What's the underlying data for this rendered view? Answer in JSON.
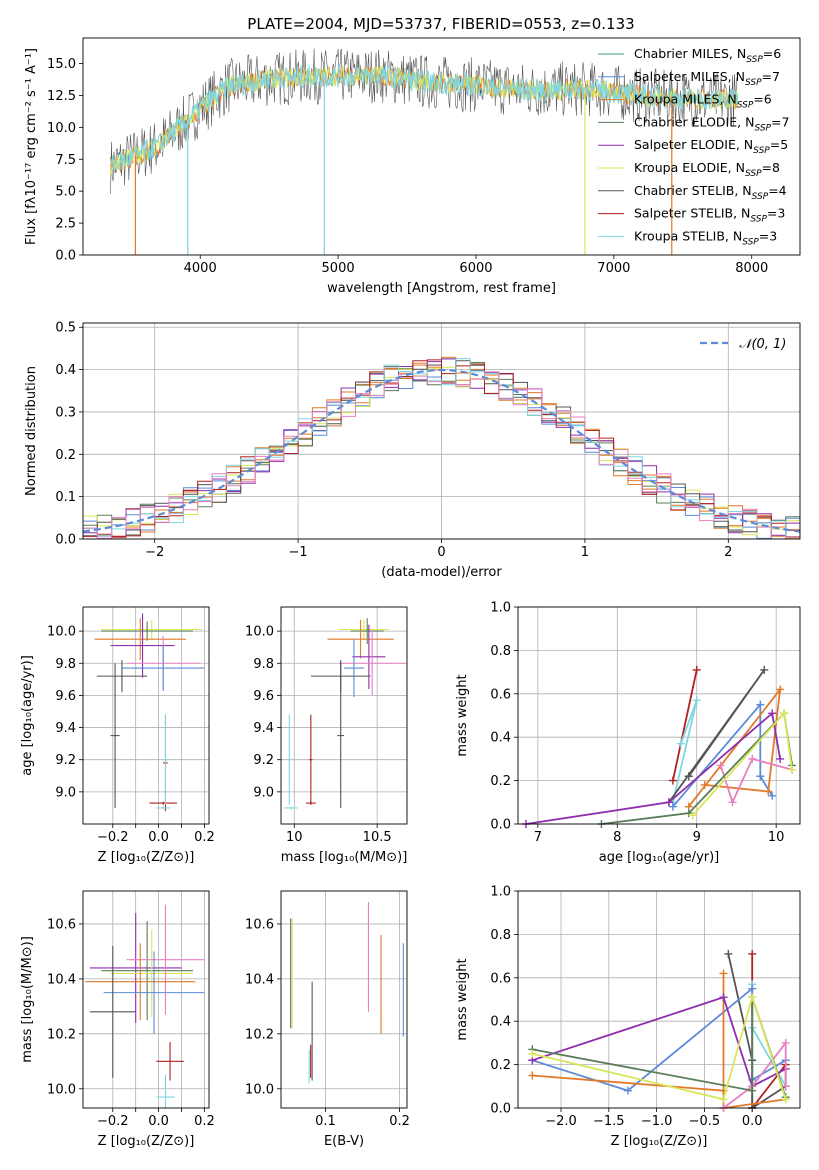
{
  "figure": {
    "title": "PLATE=2004, MJD=53737, FIBERID=0553, z=0.133"
  },
  "series_colors": [
    "#5b8bd9",
    "#e07a2a",
    "#e07a2a",
    "#5a7d5a",
    "#8f2fad",
    "#d9e65a",
    "#555555",
    "#b0201e",
    "#7fd6e0",
    "#e880c0"
  ],
  "chart_data": [
    {
      "id": "spectrum",
      "type": "line",
      "title": "PLATE=2004, MJD=53737, FIBERID=0553, z=0.133",
      "xlabel": "wavelength [Angstrom, rest frame]",
      "ylabel": "Flux [fλ10⁻¹⁷ erg cm⁻² s⁻¹ A⁻¹]",
      "xlim": [
        3150,
        8350
      ],
      "ylim": [
        0,
        17
      ],
      "xticks": [
        4000,
        5000,
        6000,
        7000,
        8000
      ],
      "yticks": [
        0.0,
        2.5,
        5.0,
        7.5,
        10.0,
        12.5,
        15.0
      ],
      "grid": false,
      "legend_position": "top-right",
      "legend": [
        {
          "label": "Chabrier MILES, N",
          "sub": "SSP",
          "suffix": "=6",
          "color": "#3c9b8b"
        },
        {
          "label": "Salpeter MILES, N",
          "sub": "SSP",
          "suffix": "=7",
          "color": "#5b8bd9"
        },
        {
          "label": "Kroupa MILES, N",
          "sub": "SSP",
          "suffix": "=6",
          "color": "#e07a2a"
        },
        {
          "label": "Chabrier ELODIE, N",
          "sub": "SSP",
          "suffix": "=7",
          "color": "#5a7d5a"
        },
        {
          "label": "Salpeter ELODIE, N",
          "sub": "SSP",
          "suffix": "=5",
          "color": "#8f2fad"
        },
        {
          "label": "Kroupa ELODIE, N",
          "sub": "SSP",
          "suffix": "=8",
          "color": "#d9e65a"
        },
        {
          "label": "Chabrier STELIB, N",
          "sub": "SSP",
          "suffix": "=4",
          "color": "#555555"
        },
        {
          "label": "Salpeter STELIB, N",
          "sub": "SSP",
          "suffix": "=3",
          "color": "#b0201e"
        },
        {
          "label": "Kroupa STELIB, N",
          "sub": "SSP",
          "suffix": "=3",
          "color": "#7fd6e0"
        }
      ],
      "series_shape": [
        {
          "x": 3350,
          "y": 7.0
        },
        {
          "x": 3500,
          "y": 7.6
        },
        {
          "x": 3700,
          "y": 8.6
        },
        {
          "x": 3900,
          "y": 10.5
        },
        {
          "x": 4000,
          "y": 11.5
        },
        {
          "x": 4200,
          "y": 13.2
        },
        {
          "x": 4500,
          "y": 13.8
        },
        {
          "x": 4800,
          "y": 14.0
        },
        {
          "x": 5000,
          "y": 14.0
        },
        {
          "x": 5300,
          "y": 14.1
        },
        {
          "x": 5600,
          "y": 13.6
        },
        {
          "x": 6000,
          "y": 13.3
        },
        {
          "x": 6400,
          "y": 12.9
        },
        {
          "x": 6800,
          "y": 13.0
        },
        {
          "x": 7200,
          "y": 12.5
        },
        {
          "x": 7600,
          "y": 12.2
        },
        {
          "x": 7900,
          "y": 12.2
        }
      ],
      "dips": [
        {
          "x": 3530,
          "y": 0
        },
        {
          "x": 3910,
          "y": 0
        },
        {
          "x": 4900,
          "y": 0
        },
        {
          "x": 6790,
          "y": 0
        },
        {
          "x": 7420,
          "y": 0
        }
      ]
    },
    {
      "id": "residuals",
      "type": "line",
      "xlabel": "(data-model)/error",
      "ylabel": "Normed distribution",
      "xlim": [
        -2.5,
        2.5
      ],
      "ylim": [
        0,
        0.51
      ],
      "xticks": [
        -2,
        -1,
        0,
        1,
        2
      ],
      "yticks": [
        0.0,
        0.1,
        0.2,
        0.3,
        0.4,
        0.5
      ],
      "grid": true,
      "legend_position": "top-right",
      "legend": [
        {
          "label": "𝒩(0,1)",
          "color": "#5b8bd9",
          "style": "dashed"
        }
      ],
      "gaussian": {
        "mean": 0,
        "sigma": 1
      }
    },
    {
      "id": "age_vs_Z",
      "type": "scatter",
      "xlabel": "Z [log₁₀(Z/Z⊙)]",
      "ylabel": "age  [log₁₀(age/yr)]",
      "xlim": [
        -0.33,
        0.22
      ],
      "ylim": [
        8.8,
        10.15
      ],
      "xticks": [
        -0.2,
        -0.1,
        0.0,
        0.1,
        0.2
      ],
      "xticklabels": [
        "−0.2",
        "",
        "0.0",
        "",
        "0.2"
      ],
      "yticks": [
        9.0,
        9.2,
        9.4,
        9.6,
        9.8,
        10.0
      ],
      "grid": true,
      "errorbars": [
        {
          "x": -0.03,
          "y": 10.01,
          "xerr": 0.22,
          "yerr": 0.06,
          "color": "#d9e65a"
        },
        {
          "x": -0.05,
          "y": 10.0,
          "xerr": 0.2,
          "yerr": 0.06,
          "color": "#5a7d5a"
        },
        {
          "x": -0.08,
          "y": 9.95,
          "xerr": 0.2,
          "yerr": 0.13,
          "color": "#e07a2a"
        },
        {
          "x": -0.07,
          "y": 9.91,
          "xerr": 0.14,
          "yerr": 0.2,
          "color": "#8f2fad"
        },
        {
          "x": 0.02,
          "y": 9.8,
          "xerr": 0.16,
          "yerr": 0.17,
          "color": "#e880c0"
        },
        {
          "x": 0.02,
          "y": 9.77,
          "xerr": 0.18,
          "yerr": 0.14,
          "color": "#5b8bd9"
        },
        {
          "x": -0.16,
          "y": 9.72,
          "xerr": 0.11,
          "yerr": 0.1,
          "color": "#555555"
        },
        {
          "x": -0.19,
          "y": 9.35,
          "xerr": 0.02,
          "yerr": 0.45,
          "color": "#555555"
        },
        {
          "x": 0.03,
          "y": 9.18,
          "xerr": 0.01,
          "yerr": 0.3,
          "color": "#b0201e"
        },
        {
          "x": 0.02,
          "y": 8.93,
          "xerr": 0.06,
          "yerr": 0.01,
          "color": "#b0201e"
        },
        {
          "x": 0.03,
          "y": 9.2,
          "xerr": 0.01,
          "yerr": 0.28,
          "color": "#7fd6e0"
        },
        {
          "x": 0.02,
          "y": 8.9,
          "xerr": 0.03,
          "yerr": 0.01,
          "color": "#7fd6e0"
        }
      ]
    },
    {
      "id": "age_vs_mass",
      "type": "scatter",
      "xlabel": "mass [log₁₀(M/M⊙)]",
      "ylabel": "",
      "xlim": [
        9.92,
        10.68
      ],
      "ylim": [
        8.8,
        10.15
      ],
      "xticks": [
        10.0,
        10.5
      ],
      "yticks": [
        9.0,
        9.2,
        9.4,
        9.6,
        9.8,
        10.0
      ],
      "grid": true,
      "errorbars": [
        {
          "x": 10.42,
          "y": 10.01,
          "xerr": 0.15,
          "yerr": 0.06,
          "color": "#d9e65a"
        },
        {
          "x": 10.44,
          "y": 10.0,
          "xerr": 0.1,
          "yerr": 0.08,
          "color": "#5a7d5a"
        },
        {
          "x": 10.4,
          "y": 9.95,
          "xerr": 0.2,
          "yerr": 0.12,
          "color": "#e07a2a"
        },
        {
          "x": 10.45,
          "y": 9.84,
          "xerr": 0.1,
          "yerr": 0.2,
          "color": "#8f2fad"
        },
        {
          "x": 10.47,
          "y": 9.8,
          "xerr": 0.2,
          "yerr": 0.2,
          "color": "#e880c0"
        },
        {
          "x": 10.36,
          "y": 9.77,
          "xerr": 0.06,
          "yerr": 0.18,
          "color": "#5b8bd9"
        },
        {
          "x": 10.28,
          "y": 9.72,
          "xerr": 0.18,
          "yerr": 0.1,
          "color": "#555555"
        },
        {
          "x": 10.28,
          "y": 9.35,
          "xerr": 0.02,
          "yerr": 0.45,
          "color": "#555555"
        },
        {
          "x": 10.1,
          "y": 9.2,
          "xerr": 0.01,
          "yerr": 0.28,
          "color": "#b0201e"
        },
        {
          "x": 10.1,
          "y": 8.93,
          "xerr": 0.03,
          "yerr": 0.01,
          "color": "#b0201e"
        },
        {
          "x": 9.97,
          "y": 9.2,
          "xerr": 0.01,
          "yerr": 0.28,
          "color": "#7fd6e0"
        },
        {
          "x": 9.98,
          "y": 8.9,
          "xerr": 0.04,
          "yerr": 0.01,
          "color": "#7fd6e0"
        }
      ]
    },
    {
      "id": "weight_vs_age",
      "type": "line",
      "xlabel": "age  [log₁₀(age/yr)]",
      "ylabel": "mass weight",
      "xlim": [
        6.75,
        10.3
      ],
      "ylim": [
        0,
        1.0
      ],
      "xticks": [
        7,
        8,
        9,
        10
      ],
      "yticks": [
        0.0,
        0.2,
        0.4,
        0.6,
        0.8,
        1.0
      ],
      "grid": true,
      "series": [
        {
          "name": "",
          "color": "#b0201e",
          "points": [
            [
              8.7,
              0.2
            ],
            [
              9.0,
              0.71
            ]
          ]
        },
        {
          "name": "",
          "color": "#7fd6e0",
          "points": [
            [
              8.8,
              0.37
            ],
            [
              9.0,
              0.57
            ],
            [
              8.7,
              0.1
            ]
          ]
        },
        {
          "name": "",
          "color": "#555555",
          "points": [
            [
              8.65,
              0.1
            ],
            [
              9.85,
              0.71
            ],
            [
              8.9,
              0.22
            ]
          ]
        },
        {
          "name": "",
          "color": "#5b8bd9",
          "points": [
            [
              8.7,
              0.08
            ],
            [
              9.8,
              0.55
            ],
            [
              9.8,
              0.22
            ],
            [
              9.95,
              0.13
            ]
          ]
        },
        {
          "name": "",
          "color": "#e07a2a",
          "points": [
            [
              8.9,
              0.08
            ],
            [
              10.05,
              0.62
            ],
            [
              9.9,
              0.15
            ],
            [
              9.1,
              0.18
            ]
          ]
        },
        {
          "name": "",
          "color": "#8f2fad",
          "points": [
            [
              6.85,
              0.0
            ],
            [
              8.65,
              0.1
            ],
            [
              9.95,
              0.51
            ],
            [
              10.05,
              0.3
            ]
          ]
        },
        {
          "name": "",
          "color": "#e880c0",
          "points": [
            [
              9.3,
              0.27
            ],
            [
              9.45,
              0.1
            ],
            [
              9.7,
              0.3
            ],
            [
              10.2,
              0.25
            ]
          ]
        },
        {
          "name": "",
          "color": "#5a7d5a",
          "points": [
            [
              7.8,
              0.0
            ],
            [
              8.9,
              0.05
            ],
            [
              10.1,
              0.51
            ],
            [
              10.2,
              0.27
            ]
          ]
        },
        {
          "name": "",
          "color": "#d9e65a",
          "points": [
            [
              8.95,
              0.04
            ],
            [
              10.1,
              0.51
            ],
            [
              10.2,
              0.25
            ]
          ]
        }
      ]
    },
    {
      "id": "mass_vs_Z",
      "type": "scatter",
      "xlabel": "Z [log₁₀(Z/Z⊙)]",
      "ylabel": "mass [log₁₀(M/M⊙)]",
      "xlim": [
        -0.33,
        0.22
      ],
      "ylim": [
        9.93,
        10.72
      ],
      "xticks": [
        -0.2,
        -0.1,
        0.0,
        0.1,
        0.2
      ],
      "xticklabels": [
        "−0.2",
        "",
        "0.0",
        "",
        "0.2"
      ],
      "yticks": [
        10.0,
        10.2,
        10.4,
        10.6
      ],
      "grid": true,
      "errorbars": [
        {
          "x": -0.1,
          "y": 10.44,
          "xerr": 0.2,
          "yerr": 0.2,
          "color": "#8f2fad"
        },
        {
          "x": -0.05,
          "y": 10.43,
          "xerr": 0.2,
          "yerr": 0.18,
          "color": "#5a7d5a"
        },
        {
          "x": -0.03,
          "y": 10.42,
          "xerr": 0.18,
          "yerr": 0.16,
          "color": "#d9e65a"
        },
        {
          "x": 0.03,
          "y": 10.47,
          "xerr": 0.17,
          "yerr": 0.2,
          "color": "#e880c0"
        },
        {
          "x": -0.08,
          "y": 10.39,
          "xerr": 0.24,
          "yerr": 0.14,
          "color": "#e07a2a"
        },
        {
          "x": -0.02,
          "y": 10.35,
          "xerr": 0.22,
          "yerr": 0.15,
          "color": "#5b8bd9"
        },
        {
          "x": -0.2,
          "y": 10.28,
          "xerr": 0.1,
          "yerr": 0.24,
          "color": "#555555"
        },
        {
          "x": 0.05,
          "y": 10.1,
          "xerr": 0.06,
          "yerr": 0.07,
          "color": "#b0201e"
        },
        {
          "x": 0.03,
          "y": 9.97,
          "xerr": 0.04,
          "yerr": 0.08,
          "color": "#7fd6e0"
        }
      ]
    },
    {
      "id": "mass_vs_EBV",
      "type": "scatter",
      "xlabel": "E(B-V)",
      "ylabel": "",
      "xlim": [
        0.04,
        0.21
      ],
      "ylim": [
        9.93,
        10.72
      ],
      "xticks": [
        0.1,
        0.2
      ],
      "yticks": [
        10.0,
        10.2,
        10.4,
        10.6
      ],
      "grid": true,
      "errorbars": [
        {
          "x": 0.055,
          "y": 10.42,
          "xerr": 0.0,
          "yerr": 0.2,
          "color": "#d9e65a"
        },
        {
          "x": 0.053,
          "y": 10.42,
          "xerr": 0.0,
          "yerr": 0.2,
          "color": "#5a7d5a"
        },
        {
          "x": 0.158,
          "y": 10.48,
          "xerr": 0.0,
          "yerr": 0.2,
          "color": "#e880c0"
        },
        {
          "x": 0.175,
          "y": 10.38,
          "xerr": 0.0,
          "yerr": 0.18,
          "color": "#e07a2a"
        },
        {
          "x": 0.205,
          "y": 10.36,
          "xerr": 0.0,
          "yerr": 0.17,
          "color": "#5b8bd9"
        },
        {
          "x": 0.082,
          "y": 10.21,
          "xerr": 0.0,
          "yerr": 0.18,
          "color": "#555555"
        },
        {
          "x": 0.08,
          "y": 10.1,
          "xerr": 0.0,
          "yerr": 0.06,
          "color": "#b0201e"
        },
        {
          "x": 0.078,
          "y": 10.08,
          "xerr": 0.0,
          "yerr": 0.06,
          "color": "#7fd6e0"
        }
      ]
    },
    {
      "id": "weight_vs_Z",
      "type": "line",
      "xlabel": "Z [log₁₀(Z/Z⊙)]",
      "ylabel": "mass weight",
      "xlim": [
        -2.45,
        0.5
      ],
      "ylim": [
        0,
        1.0
      ],
      "xticks": [
        -2.0,
        -1.5,
        -1.0,
        -0.5,
        0.0
      ],
      "yticks": [
        0.0,
        0.2,
        0.4,
        0.6,
        0.8,
        1.0
      ],
      "grid": true,
      "series": [
        {
          "name": "",
          "color": "#b0201e",
          "points": [
            [
              0.0,
              0.71
            ],
            [
              0.0,
              0.0
            ],
            [
              0.35,
              0.2
            ],
            [
              0.35,
              0.1
            ]
          ]
        },
        {
          "name": "",
          "color": "#555555",
          "points": [
            [
              -0.25,
              0.71
            ],
            [
              0.0,
              0.22
            ],
            [
              0.0,
              0.0
            ],
            [
              0.35,
              0.1
            ]
          ]
        },
        {
          "name": "",
          "color": "#7fd6e0",
          "points": [
            [
              0.0,
              0.57
            ],
            [
              0.0,
              0.37
            ],
            [
              0.35,
              0.1
            ]
          ]
        },
        {
          "name": "",
          "color": "#5b8bd9",
          "points": [
            [
              -2.3,
              0.22
            ],
            [
              -1.3,
              0.08
            ],
            [
              0.0,
              0.55
            ],
            [
              0.0,
              0.13
            ],
            [
              0.35,
              0.22
            ]
          ]
        },
        {
          "name": "",
          "color": "#e07a2a",
          "points": [
            [
              -2.3,
              0.15
            ],
            [
              -0.3,
              0.08
            ],
            [
              -0.3,
              0.62
            ],
            [
              -0.3,
              0.0
            ],
            [
              0.35,
              0.04
            ]
          ]
        },
        {
          "name": "",
          "color": "#8f2fad",
          "points": [
            [
              -2.3,
              0.22
            ],
            [
              -0.3,
              0.51
            ],
            [
              0.0,
              0.1
            ],
            [
              0.35,
              0.18
            ]
          ]
        },
        {
          "name": "",
          "color": "#e880c0",
          "points": [
            [
              -0.3,
              0.0
            ],
            [
              0.0,
              0.1
            ],
            [
              0.35,
              0.3
            ],
            [
              0.35,
              0.1
            ]
          ]
        },
        {
          "name": "",
          "color": "#5a7d5a",
          "points": [
            [
              -2.3,
              0.27
            ],
            [
              0.0,
              0.08
            ],
            [
              0.0,
              0.51
            ],
            [
              0.35,
              0.05
            ]
          ]
        },
        {
          "name": "",
          "color": "#d9e65a",
          "points": [
            [
              -2.3,
              0.25
            ],
            [
              -0.3,
              0.04
            ],
            [
              0.0,
              0.51
            ],
            [
              0.35,
              0.04
            ]
          ]
        }
      ]
    }
  ]
}
